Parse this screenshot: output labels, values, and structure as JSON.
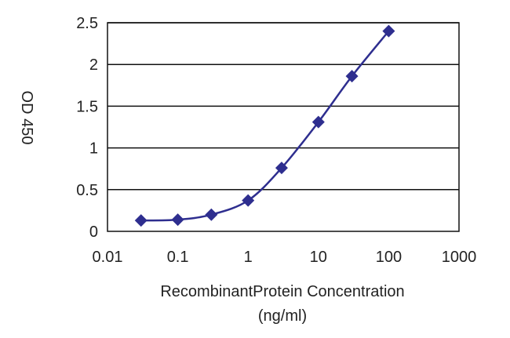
{
  "chart_data": {
    "type": "line",
    "title": "",
    "xlabel_line1": "RecombinantProtein Concentration",
    "xlabel_line2": "(ng/ml)",
    "ylabel": "OD 450",
    "x_scale": "log",
    "xlim": [
      0.01,
      1000
    ],
    "ylim": [
      0,
      2.5
    ],
    "x_ticks": [
      0.01,
      0.1,
      1,
      10,
      100,
      1000
    ],
    "x_tick_labels": [
      "0.01",
      "0.1",
      "1",
      "10",
      "100",
      "1000"
    ],
    "y_ticks": [
      0,
      0.5,
      1,
      1.5,
      2,
      2.5
    ],
    "y_tick_labels": [
      "0",
      "0.5",
      "1",
      "1.5",
      "2",
      "2.5"
    ],
    "grid": "horizontal",
    "legend": "none",
    "series": [
      {
        "x": [
          0.03,
          0.1,
          0.3,
          1,
          3,
          10,
          30,
          100
        ],
        "y": [
          0.13,
          0.14,
          0.2,
          0.37,
          0.76,
          1.31,
          1.86,
          2.4
        ],
        "color": "#2e2e8f",
        "marker": "diamond"
      }
    ]
  }
}
